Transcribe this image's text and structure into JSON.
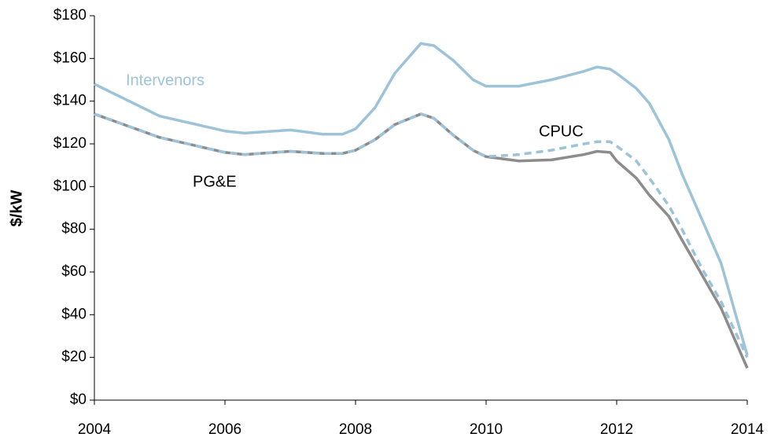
{
  "chart_data": {
    "type": "line",
    "ylabel": "$/kW",
    "x": [
      2004,
      2005,
      2006,
      2006.3,
      2007,
      2007.5,
      2007.8,
      2008,
      2008.3,
      2008.6,
      2009,
      2009.2,
      2009.5,
      2009.8,
      2010,
      2010.5,
      2011,
      2011.5,
      2011.7,
      2011.9,
      2012,
      2012.3,
      2012.5,
      2012.8,
      2013,
      2013.3,
      2013.6,
      2014
    ],
    "series": [
      {
        "name": "Intervenors",
        "color": "#9dc3d9",
        "dashed": false,
        "values": [
          148,
          133,
          126,
          125,
          126.5,
          124.5,
          124.5,
          127,
          137,
          153,
          167,
          166,
          159,
          150,
          147,
          147,
          150,
          154,
          156,
          155,
          153,
          146,
          139,
          122,
          106,
          85,
          64,
          21
        ]
      },
      {
        "name": "PG&E",
        "color": "#8c8c8c",
        "dashed": false,
        "values": [
          134,
          123,
          116,
          115,
          116.5,
          115.5,
          115.5,
          117,
          122,
          129,
          134,
          132,
          124,
          117,
          114,
          112,
          112.5,
          115,
          116.5,
          116,
          112,
          104,
          96,
          86,
          75,
          59,
          43,
          15
        ]
      },
      {
        "name": "CPUC",
        "color": "#9dc3d9",
        "dashed": true,
        "values": [
          134,
          123,
          116,
          115,
          116.5,
          115.5,
          115.5,
          117,
          122,
          129,
          134,
          132,
          124,
          117,
          114,
          115,
          117,
          120,
          121,
          121,
          119,
          112,
          104,
          91,
          80,
          62,
          46,
          20
        ]
      }
    ],
    "xlim": [
      2004,
      2014
    ],
    "xticks": [
      2004,
      2006,
      2008,
      2010,
      2012,
      2014
    ],
    "ylim": [
      0,
      180
    ],
    "yticks": [
      {
        "value": 0,
        "label": "$0"
      },
      {
        "value": 20,
        "label": "$20"
      },
      {
        "value": 40,
        "label": "$40"
      },
      {
        "value": 60,
        "label": "$60"
      },
      {
        "value": 80,
        "label": "$80"
      },
      {
        "value": 100,
        "label": "$100"
      },
      {
        "value": 120,
        "label": "$120"
      },
      {
        "value": 140,
        "label": "$140"
      },
      {
        "value": 160,
        "label": "$160"
      },
      {
        "value": 180,
        "label": "$180"
      }
    ],
    "grid": false
  }
}
